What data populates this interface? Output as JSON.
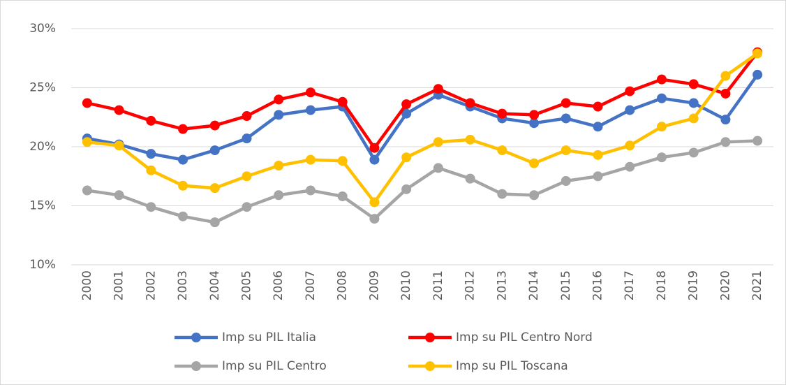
{
  "chart_data": {
    "type": "line",
    "categories": [
      "2000",
      "2001",
      "2002",
      "2003",
      "2004",
      "2005",
      "2006",
      "2007",
      "2008",
      "2009",
      "2010",
      "2011",
      "2012",
      "2013",
      "2014",
      "2015",
      "2016",
      "2017",
      "2018",
      "2019",
      "2020",
      "2021"
    ],
    "series": [
      {
        "name": "Imp su PIL Italia",
        "color": "#4472c4",
        "values": [
          20.7,
          20.2,
          19.4,
          18.9,
          19.7,
          20.7,
          22.7,
          23.1,
          23.4,
          18.9,
          22.8,
          24.4,
          23.4,
          22.4,
          22.0,
          22.4,
          21.7,
          23.1,
          24.1,
          23.7,
          22.3,
          26.1
        ]
      },
      {
        "name": "Imp su PIL Centro Nord",
        "color": "#ff0000",
        "values": [
          23.7,
          23.1,
          22.2,
          21.5,
          21.8,
          22.6,
          24.0,
          24.6,
          23.8,
          19.9,
          23.6,
          24.9,
          23.7,
          22.8,
          22.7,
          23.7,
          23.4,
          24.7,
          25.7,
          25.3,
          24.5,
          28.0
        ]
      },
      {
        "name": "Imp su PIL Centro",
        "color": "#a5a5a5",
        "values": [
          16.3,
          15.9,
          14.9,
          14.1,
          13.6,
          14.9,
          15.9,
          16.3,
          15.8,
          13.9,
          16.4,
          18.2,
          17.3,
          16.0,
          15.9,
          17.1,
          17.5,
          18.3,
          19.1,
          19.5,
          20.4,
          20.5
        ]
      },
      {
        "name": "Imp su PIL Toscana",
        "color": "#ffc000",
        "values": [
          20.4,
          20.1,
          18.0,
          16.7,
          16.5,
          17.5,
          18.4,
          18.9,
          18.8,
          15.3,
          19.1,
          20.4,
          20.6,
          19.7,
          18.6,
          19.7,
          19.3,
          20.1,
          21.7,
          22.4,
          26.0,
          27.9
        ]
      }
    ],
    "ylim": [
      10,
      30
    ],
    "yticks": [
      {
        "value": 10,
        "label": "10%"
      },
      {
        "value": 15,
        "label": "15%"
      },
      {
        "value": 20,
        "label": "20%"
      },
      {
        "value": 25,
        "label": "25%"
      },
      {
        "value": 30,
        "label": "30%"
      }
    ],
    "grid": true
  }
}
